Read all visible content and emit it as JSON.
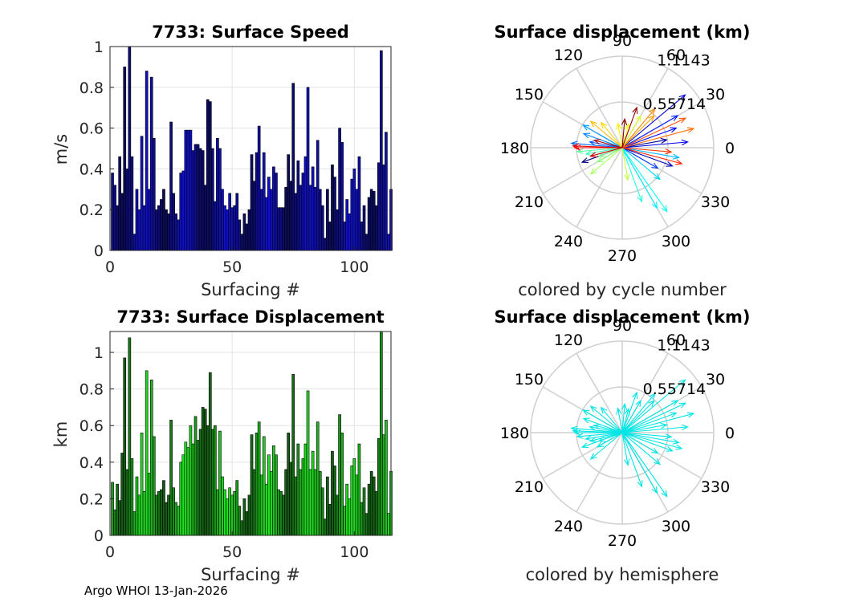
{
  "footer": "Argo WHOI 13-Jan-2026",
  "chart_data": [
    {
      "type": "bar",
      "title": "7733: Surface Speed",
      "xlabel": "Surfacing #",
      "ylabel": "m/s",
      "xlim": [
        0,
        115
      ],
      "ylim": [
        0,
        1
      ],
      "xticks": [
        "0",
        "50",
        "100"
      ],
      "yticks": [
        "0",
        "0.2",
        "0.4",
        "0.6",
        "0.8",
        "1"
      ],
      "grid": true,
      "colors": {
        "start": "#1010c8",
        "end": "#0a0a40"
      },
      "values": [
        0.38,
        0.32,
        0.22,
        0.46,
        0.28,
        0.9,
        0.4,
        1.0,
        0.46,
        0.08,
        0.3,
        0.2,
        0.56,
        0.22,
        0.88,
        0.3,
        0.85,
        0.55,
        0.2,
        0.22,
        0.25,
        0.3,
        0.2,
        0.18,
        0.63,
        0.28,
        0.18,
        0.15,
        0.38,
        0.39,
        0.59,
        0.59,
        0.59,
        0.49,
        0.52,
        0.52,
        0.5,
        0.49,
        0.32,
        0.74,
        0.73,
        0.5,
        0.24,
        0.55,
        0.5,
        0.3,
        0.22,
        0.2,
        0.28,
        0.21,
        0.22,
        0.28,
        0.15,
        0.08,
        0.18,
        0.13,
        0.2,
        0.47,
        0.34,
        0.48,
        0.61,
        0.3,
        0.48,
        0.26,
        0.36,
        0.3,
        0.41,
        0.38,
        0.21,
        0.21,
        0.21,
        0.31,
        0.47,
        0.34,
        0.82,
        0.28,
        0.44,
        0.32,
        0.38,
        0.46,
        0.8,
        0.32,
        0.41,
        0.31,
        0.54,
        0.3,
        0.22,
        0.06,
        0.3,
        0.14,
        0.42,
        0.36,
        0.2,
        0.6,
        0.53,
        0.14,
        0.25,
        0.18,
        0.35,
        0.4,
        0.3,
        0.46,
        0.14,
        0.22,
        0.08,
        0.26,
        0.3,
        0.29,
        0.22,
        0.43,
        0.98,
        0.42,
        0.58,
        0.08,
        0.3
      ],
      "_approx_note": ""
    },
    {
      "type": "scatter",
      "title": "Surface displacement (km)",
      "xlabel": "colored by cycle number",
      "rlim": [
        0,
        1.1143
      ],
      "rticks": [
        "0.55714",
        "1.1143"
      ],
      "theta_ticks": [
        "0",
        "30",
        "60",
        "90",
        "120",
        "150",
        "180",
        "210",
        "240",
        "270",
        "300",
        "330"
      ],
      "colormap": "jet",
      "arrows_deg_km": [
        [
          200,
          0.52
        ],
        [
          10,
          0.55
        ],
        [
          -20,
          0.65
        ],
        [
          40,
          1.0
        ],
        [
          5,
          0.8
        ],
        [
          20,
          0.7
        ],
        [
          30,
          0.78
        ],
        [
          -30,
          0.5
        ],
        [
          170,
          0.4
        ],
        [
          175,
          0.62
        ],
        [
          160,
          0.5
        ],
        [
          150,
          0.55
        ],
        [
          -10,
          0.7
        ],
        [
          -40,
          0.6
        ],
        [
          -60,
          0.85
        ],
        [
          -55,
          0.95
        ],
        [
          -70,
          0.7
        ],
        [
          190,
          0.45
        ],
        [
          185,
          0.55
        ],
        [
          200,
          0.3
        ],
        [
          210,
          0.35
        ],
        [
          220,
          0.5
        ],
        [
          -80,
          0.4
        ],
        [
          60,
          0.45
        ],
        [
          75,
          0.3
        ],
        [
          100,
          0.3
        ],
        [
          130,
          0.4
        ],
        [
          140,
          0.5
        ],
        [
          45,
          0.55
        ],
        [
          50,
          0.62
        ],
        [
          15,
          0.9
        ],
        [
          25,
          0.85
        ],
        [
          -5,
          0.6
        ],
        [
          -15,
          0.75
        ],
        [
          180,
          0.58
        ],
        [
          178,
          0.6
        ],
        [
          195,
          0.4
        ],
        [
          165,
          0.35
        ],
        [
          70,
          0.52
        ],
        [
          85,
          0.35
        ]
      ]
    },
    {
      "type": "bar",
      "title": "7733: Surface Displacement",
      "xlabel": "Surfacing #",
      "ylabel": "km",
      "xlim": [
        0,
        115
      ],
      "ylim": [
        0,
        1.1143
      ],
      "xticks": [
        "0",
        "50",
        "100"
      ],
      "yticks": [
        "0",
        "0.2",
        "0.4",
        "0.6",
        "0.8",
        "1"
      ],
      "grid": true,
      "colors": {
        "start": "#22e022",
        "end": "#103810"
      },
      "values": [
        0.29,
        0.14,
        0.28,
        0.19,
        0.45,
        0.97,
        0.36,
        1.08,
        0.42,
        0.13,
        0.32,
        0.22,
        0.56,
        0.24,
        0.9,
        0.34,
        0.85,
        0.54,
        0.22,
        0.24,
        0.25,
        0.3,
        0.18,
        0.22,
        0.63,
        0.26,
        0.18,
        0.16,
        0.4,
        0.44,
        0.51,
        0.48,
        0.6,
        0.5,
        0.65,
        0.52,
        0.58,
        0.7,
        0.69,
        0.6,
        0.89,
        0.58,
        0.6,
        0.25,
        0.57,
        0.32,
        0.25,
        0.2,
        0.26,
        0.22,
        0.24,
        0.3,
        0.16,
        0.08,
        0.2,
        0.13,
        0.22,
        0.55,
        0.36,
        0.56,
        0.62,
        0.33,
        0.54,
        0.28,
        0.44,
        0.35,
        0.49,
        0.44,
        0.25,
        0.24,
        0.22,
        0.36,
        0.56,
        0.4,
        0.88,
        0.32,
        0.5,
        0.36,
        0.42,
        0.5,
        0.79,
        0.36,
        0.46,
        0.36,
        0.62,
        0.35,
        0.26,
        0.09,
        0.32,
        0.17,
        0.46,
        0.38,
        0.22,
        0.66,
        0.56,
        0.16,
        0.28,
        0.2,
        0.38,
        0.42,
        0.33,
        0.5,
        0.18,
        0.26,
        0.12,
        0.28,
        0.35,
        0.32,
        0.24,
        0.53,
        1.1143,
        0.55,
        0.63,
        0.12,
        0.35
      ]
    },
    {
      "type": "scatter",
      "title": "Surface displacement (km)",
      "xlabel": "colored by hemisphere",
      "rlim": [
        0,
        1.1143
      ],
      "rticks": [
        "0.55714",
        "1.1143"
      ],
      "theta_ticks": [
        "0",
        "30",
        "60",
        "90",
        "120",
        "150",
        "180",
        "210",
        "240",
        "270",
        "300",
        "330"
      ],
      "color": "#00e5e5",
      "arrows_deg_km": [
        [
          200,
          0.52
        ],
        [
          10,
          0.55
        ],
        [
          -20,
          0.65
        ],
        [
          40,
          1.0
        ],
        [
          5,
          0.8
        ],
        [
          20,
          0.7
        ],
        [
          30,
          0.78
        ],
        [
          -30,
          0.5
        ],
        [
          170,
          0.4
        ],
        [
          175,
          0.62
        ],
        [
          160,
          0.5
        ],
        [
          150,
          0.55
        ],
        [
          -10,
          0.7
        ],
        [
          -40,
          0.6
        ],
        [
          -60,
          0.85
        ],
        [
          -55,
          0.95
        ],
        [
          -70,
          0.7
        ],
        [
          190,
          0.45
        ],
        [
          185,
          0.55
        ],
        [
          200,
          0.3
        ],
        [
          210,
          0.35
        ],
        [
          220,
          0.5
        ],
        [
          -80,
          0.4
        ],
        [
          60,
          0.45
        ],
        [
          75,
          0.3
        ],
        [
          100,
          0.3
        ],
        [
          130,
          0.4
        ],
        [
          140,
          0.5
        ],
        [
          45,
          0.55
        ],
        [
          50,
          0.62
        ],
        [
          15,
          0.9
        ],
        [
          25,
          0.85
        ],
        [
          -5,
          0.6
        ],
        [
          -15,
          0.75
        ],
        [
          180,
          0.58
        ],
        [
          178,
          0.6
        ],
        [
          195,
          0.4
        ],
        [
          165,
          0.35
        ],
        [
          70,
          0.52
        ],
        [
          85,
          0.35
        ]
      ]
    }
  ]
}
